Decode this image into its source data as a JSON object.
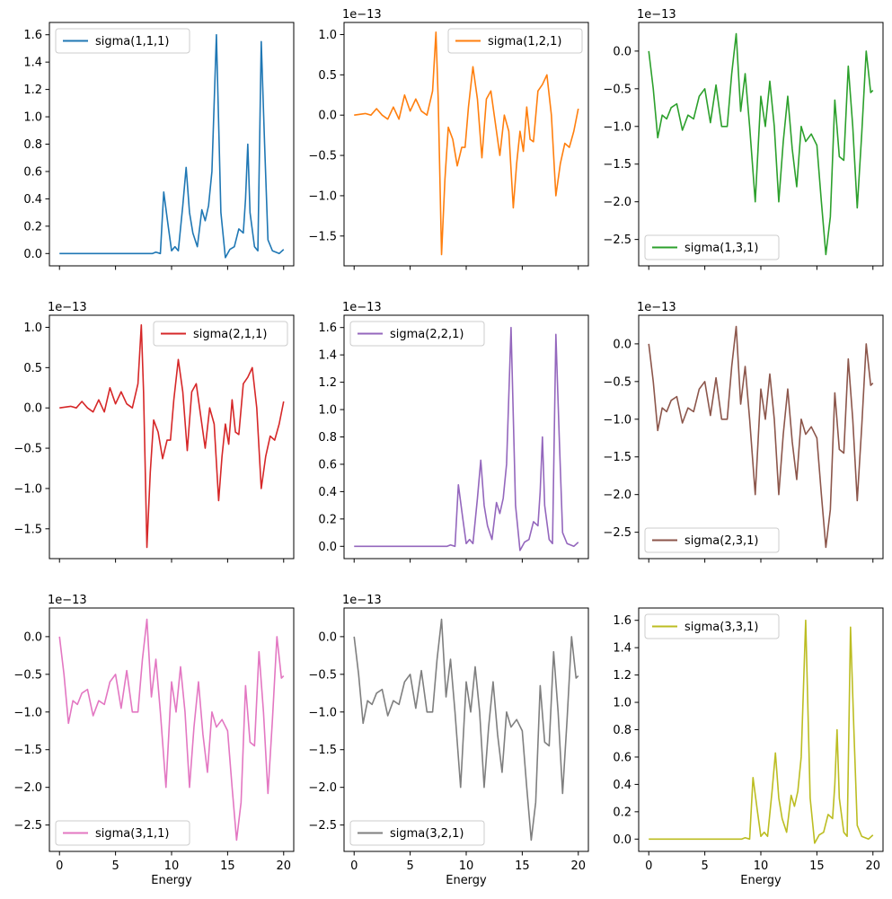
{
  "chart_data": {
    "type": "line",
    "layout": "3x3 grid",
    "xlabel": "Energy",
    "x_ticks": [
      0,
      5,
      10,
      15,
      20
    ],
    "xlim": [
      -0.9,
      20.9
    ],
    "shared_x": true,
    "panels": [
      {
        "series_name": "sigma(1,1,1)",
        "color": "#1f77b4",
        "legend": "upper left",
        "offset_text": "",
        "ylim": [
          -0.09,
          1.69
        ],
        "y_ticks": [
          0.0,
          0.2,
          0.4,
          0.6,
          0.8,
          1.0,
          1.2,
          1.4,
          1.6
        ],
        "y_tick_labels": [
          "0.0",
          "0.2",
          "0.4",
          "0.6",
          "0.8",
          "1.0",
          "1.2",
          "1.4",
          "1.6"
        ],
        "show_xticklabels": false,
        "show_xlabel": false,
        "x": [
          0,
          7.5,
          8.3,
          8.6,
          9.0,
          9.3,
          9.7,
          10.0,
          10.3,
          10.6,
          11.0,
          11.3,
          11.6,
          11.9,
          12.3,
          12.7,
          13.0,
          13.3,
          13.6,
          14.0,
          14.4,
          14.8,
          15.2,
          15.6,
          16.0,
          16.4,
          16.6,
          16.8,
          17.0,
          17.4,
          17.7,
          18.0,
          18.3,
          18.6,
          19.0,
          19.3,
          19.6,
          20.0
        ],
        "y": [
          0.0,
          0.0,
          0.0,
          0.01,
          0.0,
          0.45,
          0.2,
          0.02,
          0.05,
          0.02,
          0.35,
          0.63,
          0.3,
          0.15,
          0.05,
          0.32,
          0.24,
          0.35,
          0.6,
          1.6,
          0.3,
          -0.03,
          0.03,
          0.05,
          0.18,
          0.15,
          0.4,
          0.8,
          0.3,
          0.05,
          0.02,
          1.55,
          0.8,
          0.1,
          0.02,
          0.01,
          0.0,
          0.03
        ]
      },
      {
        "series_name": "sigma(1,2,1)",
        "color": "#ff7f0e",
        "legend": "upper right",
        "offset_text": "1e−13",
        "ylim": [
          -1.87,
          1.15
        ],
        "y_ticks": [
          -1.5,
          -1.0,
          -0.5,
          0.0,
          0.5,
          1.0
        ],
        "y_tick_labels": [
          "−1.5",
          "−1.0",
          "−0.5",
          "0.0",
          "0.5",
          "1.0"
        ],
        "show_xticklabels": false,
        "show_xlabel": false,
        "x": [
          0,
          1.0,
          1.5,
          2.0,
          2.5,
          3.0,
          3.5,
          4.0,
          4.5,
          5.0,
          5.5,
          6.0,
          6.5,
          7.0,
          7.3,
          7.5,
          7.8,
          8.1,
          8.4,
          8.8,
          9.2,
          9.6,
          9.9,
          10.2,
          10.6,
          11.0,
          11.4,
          11.8,
          12.2,
          12.6,
          13.0,
          13.4,
          13.8,
          14.2,
          14.5,
          14.8,
          15.1,
          15.4,
          15.7,
          16.0,
          16.4,
          16.8,
          17.2,
          17.6,
          18.0,
          18.4,
          18.8,
          19.2,
          19.6,
          20.0
        ],
        "y": [
          0.0,
          0.02,
          0.0,
          0.08,
          0.0,
          -0.05,
          0.1,
          -0.05,
          0.25,
          0.05,
          0.2,
          0.05,
          0.0,
          0.3,
          1.03,
          0.2,
          -1.73,
          -0.8,
          -0.15,
          -0.3,
          -0.63,
          -0.4,
          -0.4,
          0.1,
          0.6,
          0.2,
          -0.53,
          0.2,
          0.3,
          -0.1,
          -0.5,
          0.0,
          -0.2,
          -1.15,
          -0.6,
          -0.2,
          -0.45,
          0.1,
          -0.3,
          -0.33,
          0.3,
          0.38,
          0.5,
          0.0,
          -1.0,
          -0.6,
          -0.35,
          -0.4,
          -0.2,
          0.08
        ]
      },
      {
        "series_name": "sigma(1,3,1)",
        "color": "#2ca02c",
        "legend": "lower left",
        "offset_text": "1e−13",
        "ylim": [
          -2.85,
          0.38
        ],
        "y_ticks": [
          -2.5,
          -2.0,
          -1.5,
          -1.0,
          -0.5,
          0.0
        ],
        "y_tick_labels": [
          "−2.5",
          "−2.0",
          "−1.5",
          "−1.0",
          "−0.5",
          "0.0"
        ],
        "show_xticklabels": false,
        "show_xlabel": false,
        "x": [
          0,
          0.4,
          0.8,
          1.2,
          1.6,
          2.0,
          2.5,
          3.0,
          3.5,
          4.0,
          4.5,
          5.0,
          5.5,
          6.0,
          6.5,
          7.0,
          7.4,
          7.8,
          8.2,
          8.6,
          9.0,
          9.5,
          10.0,
          10.4,
          10.8,
          11.2,
          11.6,
          12.0,
          12.4,
          12.8,
          13.2,
          13.6,
          14.0,
          14.5,
          15.0,
          15.4,
          15.8,
          16.2,
          16.6,
          17.0,
          17.4,
          17.8,
          18.2,
          18.6,
          19.0,
          19.4,
          19.8,
          20.0
        ],
        "y": [
          0.0,
          -0.5,
          -1.15,
          -0.85,
          -0.9,
          -0.75,
          -0.7,
          -1.05,
          -0.85,
          -0.9,
          -0.6,
          -0.5,
          -0.95,
          -0.45,
          -1.0,
          -1.0,
          -0.3,
          0.23,
          -0.8,
          -0.3,
          -1.0,
          -2.0,
          -0.6,
          -1.0,
          -0.4,
          -1.0,
          -2.0,
          -1.2,
          -0.6,
          -1.3,
          -1.8,
          -1.0,
          -1.2,
          -1.1,
          -1.25,
          -2.0,
          -2.7,
          -2.2,
          -0.65,
          -1.4,
          -1.45,
          -0.2,
          -1.0,
          -2.08,
          -1.1,
          0.0,
          -0.55,
          -0.52
        ]
      },
      {
        "series_name": "sigma(2,1,1)",
        "color": "#d62728",
        "legend": "upper right",
        "offset_text": "1e−13",
        "ylim": [
          -1.87,
          1.15
        ],
        "y_ticks": [
          -1.5,
          -1.0,
          -0.5,
          0.0,
          0.5,
          1.0
        ],
        "y_tick_labels": [
          "−1.5",
          "−1.0",
          "−0.5",
          "0.0",
          "0.5",
          "1.0"
        ],
        "show_xticklabels": false,
        "show_xlabel": false,
        "x": [
          0,
          1.0,
          1.5,
          2.0,
          2.5,
          3.0,
          3.5,
          4.0,
          4.5,
          5.0,
          5.5,
          6.0,
          6.5,
          7.0,
          7.3,
          7.5,
          7.8,
          8.1,
          8.4,
          8.8,
          9.2,
          9.6,
          9.9,
          10.2,
          10.6,
          11.0,
          11.4,
          11.8,
          12.2,
          12.6,
          13.0,
          13.4,
          13.8,
          14.2,
          14.5,
          14.8,
          15.1,
          15.4,
          15.7,
          16.0,
          16.4,
          16.8,
          17.2,
          17.6,
          18.0,
          18.4,
          18.8,
          19.2,
          19.6,
          20.0
        ],
        "y": [
          0.0,
          0.02,
          0.0,
          0.08,
          0.0,
          -0.05,
          0.1,
          -0.05,
          0.25,
          0.05,
          0.2,
          0.05,
          0.0,
          0.3,
          1.03,
          0.2,
          -1.73,
          -0.8,
          -0.15,
          -0.3,
          -0.63,
          -0.4,
          -0.4,
          0.1,
          0.6,
          0.2,
          -0.53,
          0.2,
          0.3,
          -0.1,
          -0.5,
          0.0,
          -0.2,
          -1.15,
          -0.6,
          -0.2,
          -0.45,
          0.1,
          -0.3,
          -0.33,
          0.3,
          0.38,
          0.5,
          0.0,
          -1.0,
          -0.6,
          -0.35,
          -0.4,
          -0.2,
          0.08
        ]
      },
      {
        "series_name": "sigma(2,2,1)",
        "color": "#9467bd",
        "legend": "upper left",
        "offset_text": "1e−13",
        "ylim": [
          -0.09,
          1.69
        ],
        "y_ticks": [
          0.0,
          0.2,
          0.4,
          0.6,
          0.8,
          1.0,
          1.2,
          1.4,
          1.6
        ],
        "y_tick_labels": [
          "0.0",
          "0.2",
          "0.4",
          "0.6",
          "0.8",
          "1.0",
          "1.2",
          "1.4",
          "1.6"
        ],
        "show_xticklabels": false,
        "show_xlabel": false,
        "x": [
          0,
          7.5,
          8.3,
          8.6,
          9.0,
          9.3,
          9.7,
          10.0,
          10.3,
          10.6,
          11.0,
          11.3,
          11.6,
          11.9,
          12.3,
          12.7,
          13.0,
          13.3,
          13.6,
          14.0,
          14.4,
          14.8,
          15.2,
          15.6,
          16.0,
          16.4,
          16.6,
          16.8,
          17.0,
          17.4,
          17.7,
          18.0,
          18.3,
          18.6,
          19.0,
          19.3,
          19.6,
          20.0
        ],
        "y": [
          0.0,
          0.0,
          0.0,
          0.01,
          0.0,
          0.45,
          0.2,
          0.02,
          0.05,
          0.02,
          0.35,
          0.63,
          0.3,
          0.15,
          0.05,
          0.32,
          0.24,
          0.35,
          0.6,
          1.6,
          0.3,
          -0.03,
          0.03,
          0.05,
          0.18,
          0.15,
          0.4,
          0.8,
          0.3,
          0.05,
          0.02,
          1.55,
          0.8,
          0.1,
          0.02,
          0.01,
          0.0,
          0.03
        ]
      },
      {
        "series_name": "sigma(2,3,1)",
        "color": "#8c564b",
        "legend": "lower left",
        "offset_text": "1e−13",
        "ylim": [
          -2.85,
          0.38
        ],
        "y_ticks": [
          -2.5,
          -2.0,
          -1.5,
          -1.0,
          -0.5,
          0.0
        ],
        "y_tick_labels": [
          "−2.5",
          "−2.0",
          "−1.5",
          "−1.0",
          "−0.5",
          "0.0"
        ],
        "show_xticklabels": false,
        "show_xlabel": false,
        "x": [
          0,
          0.4,
          0.8,
          1.2,
          1.6,
          2.0,
          2.5,
          3.0,
          3.5,
          4.0,
          4.5,
          5.0,
          5.5,
          6.0,
          6.5,
          7.0,
          7.4,
          7.8,
          8.2,
          8.6,
          9.0,
          9.5,
          10.0,
          10.4,
          10.8,
          11.2,
          11.6,
          12.0,
          12.4,
          12.8,
          13.2,
          13.6,
          14.0,
          14.5,
          15.0,
          15.4,
          15.8,
          16.2,
          16.6,
          17.0,
          17.4,
          17.8,
          18.2,
          18.6,
          19.0,
          19.4,
          19.8,
          20.0
        ],
        "y": [
          0.0,
          -0.5,
          -1.15,
          -0.85,
          -0.9,
          -0.75,
          -0.7,
          -1.05,
          -0.85,
          -0.9,
          -0.6,
          -0.5,
          -0.95,
          -0.45,
          -1.0,
          -1.0,
          -0.3,
          0.23,
          -0.8,
          -0.3,
          -1.0,
          -2.0,
          -0.6,
          -1.0,
          -0.4,
          -1.0,
          -2.0,
          -1.2,
          -0.6,
          -1.3,
          -1.8,
          -1.0,
          -1.2,
          -1.1,
          -1.25,
          -2.0,
          -2.7,
          -2.2,
          -0.65,
          -1.4,
          -1.45,
          -0.2,
          -1.0,
          -2.08,
          -1.1,
          0.0,
          -0.55,
          -0.52
        ]
      },
      {
        "series_name": "sigma(3,1,1)",
        "color": "#e377c2",
        "legend": "lower left",
        "offset_text": "1e−13",
        "ylim": [
          -2.85,
          0.38
        ],
        "y_ticks": [
          -2.5,
          -2.0,
          -1.5,
          -1.0,
          -0.5,
          0.0
        ],
        "y_tick_labels": [
          "−2.5",
          "−2.0",
          "−1.5",
          "−1.0",
          "−0.5",
          "0.0"
        ],
        "show_xticklabels": true,
        "show_xlabel": true,
        "x": [
          0,
          0.4,
          0.8,
          1.2,
          1.6,
          2.0,
          2.5,
          3.0,
          3.5,
          4.0,
          4.5,
          5.0,
          5.5,
          6.0,
          6.5,
          7.0,
          7.4,
          7.8,
          8.2,
          8.6,
          9.0,
          9.5,
          10.0,
          10.4,
          10.8,
          11.2,
          11.6,
          12.0,
          12.4,
          12.8,
          13.2,
          13.6,
          14.0,
          14.5,
          15.0,
          15.4,
          15.8,
          16.2,
          16.6,
          17.0,
          17.4,
          17.8,
          18.2,
          18.6,
          19.0,
          19.4,
          19.8,
          20.0
        ],
        "y": [
          0.0,
          -0.5,
          -1.15,
          -0.85,
          -0.9,
          -0.75,
          -0.7,
          -1.05,
          -0.85,
          -0.9,
          -0.6,
          -0.5,
          -0.95,
          -0.45,
          -1.0,
          -1.0,
          -0.3,
          0.23,
          -0.8,
          -0.3,
          -1.0,
          -2.0,
          -0.6,
          -1.0,
          -0.4,
          -1.0,
          -2.0,
          -1.2,
          -0.6,
          -1.3,
          -1.8,
          -1.0,
          -1.2,
          -1.1,
          -1.25,
          -2.0,
          -2.7,
          -2.2,
          -0.65,
          -1.4,
          -1.45,
          -0.2,
          -1.0,
          -2.08,
          -1.1,
          0.0,
          -0.55,
          -0.52
        ]
      },
      {
        "series_name": "sigma(3,2,1)",
        "color": "#7f7f7f",
        "legend": "lower left",
        "offset_text": "1e−13",
        "ylim": [
          -2.85,
          0.38
        ],
        "y_ticks": [
          -2.5,
          -2.0,
          -1.5,
          -1.0,
          -0.5,
          0.0
        ],
        "y_tick_labels": [
          "−2.5",
          "−2.0",
          "−1.5",
          "−1.0",
          "−0.5",
          "0.0"
        ],
        "show_xticklabels": true,
        "show_xlabel": true,
        "x": [
          0,
          0.4,
          0.8,
          1.2,
          1.6,
          2.0,
          2.5,
          3.0,
          3.5,
          4.0,
          4.5,
          5.0,
          5.5,
          6.0,
          6.5,
          7.0,
          7.4,
          7.8,
          8.2,
          8.6,
          9.0,
          9.5,
          10.0,
          10.4,
          10.8,
          11.2,
          11.6,
          12.0,
          12.4,
          12.8,
          13.2,
          13.6,
          14.0,
          14.5,
          15.0,
          15.4,
          15.8,
          16.2,
          16.6,
          17.0,
          17.4,
          17.8,
          18.2,
          18.6,
          19.0,
          19.4,
          19.8,
          20.0
        ],
        "y": [
          0.0,
          -0.5,
          -1.15,
          -0.85,
          -0.9,
          -0.75,
          -0.7,
          -1.05,
          -0.85,
          -0.9,
          -0.6,
          -0.5,
          -0.95,
          -0.45,
          -1.0,
          -1.0,
          -0.3,
          0.23,
          -0.8,
          -0.3,
          -1.0,
          -2.0,
          -0.6,
          -1.0,
          -0.4,
          -1.0,
          -2.0,
          -1.2,
          -0.6,
          -1.3,
          -1.8,
          -1.0,
          -1.2,
          -1.1,
          -1.25,
          -2.0,
          -2.7,
          -2.2,
          -0.65,
          -1.4,
          -1.45,
          -0.2,
          -1.0,
          -2.08,
          -1.1,
          0.0,
          -0.55,
          -0.52
        ]
      },
      {
        "series_name": "sigma(3,3,1)",
        "color": "#bcbd22",
        "legend": "upper left",
        "offset_text": "",
        "ylim": [
          -0.09,
          1.69
        ],
        "y_ticks": [
          0.0,
          0.2,
          0.4,
          0.6,
          0.8,
          1.0,
          1.2,
          1.4,
          1.6
        ],
        "y_tick_labels": [
          "0.0",
          "0.2",
          "0.4",
          "0.6",
          "0.8",
          "1.0",
          "1.2",
          "1.4",
          "1.6"
        ],
        "show_xticklabels": true,
        "show_xlabel": true,
        "x": [
          0,
          7.5,
          8.3,
          8.6,
          9.0,
          9.3,
          9.7,
          10.0,
          10.3,
          10.6,
          11.0,
          11.3,
          11.6,
          11.9,
          12.3,
          12.7,
          13.0,
          13.3,
          13.6,
          14.0,
          14.4,
          14.8,
          15.2,
          15.6,
          16.0,
          16.4,
          16.6,
          16.8,
          17.0,
          17.4,
          17.7,
          18.0,
          18.3,
          18.6,
          19.0,
          19.3,
          19.6,
          20.0
        ],
        "y": [
          0.0,
          0.0,
          0.0,
          0.01,
          0.0,
          0.45,
          0.2,
          0.02,
          0.05,
          0.02,
          0.35,
          0.63,
          0.3,
          0.15,
          0.05,
          0.32,
          0.24,
          0.35,
          0.6,
          1.6,
          0.3,
          -0.03,
          0.03,
          0.05,
          0.18,
          0.15,
          0.4,
          0.8,
          0.3,
          0.05,
          0.02,
          1.55,
          0.8,
          0.1,
          0.02,
          0.01,
          0.0,
          0.03
        ]
      }
    ]
  }
}
